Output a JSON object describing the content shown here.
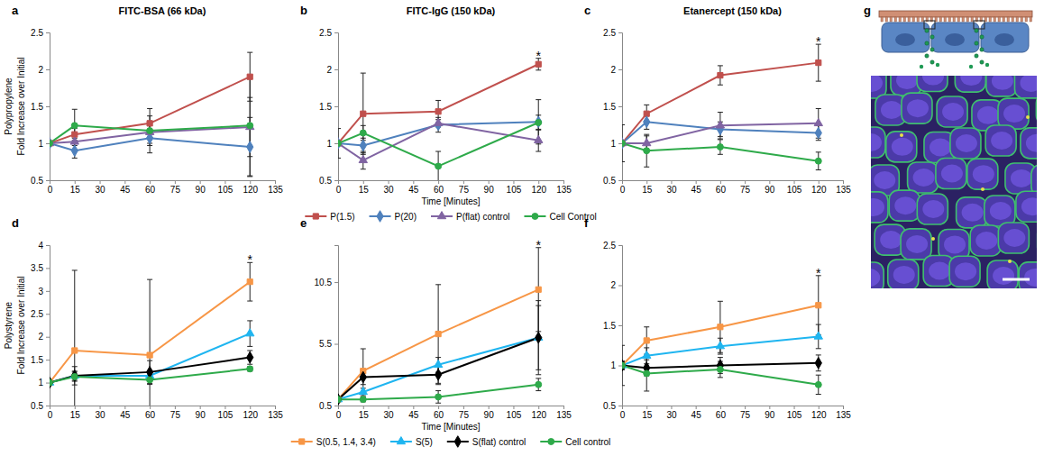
{
  "chart_data": [
    {
      "type": "line",
      "panel": "a",
      "title": "FITC-BSA (66 kDa)",
      "row_label": "Polypropylene",
      "y_label": "Fold Increase over Initial",
      "x": [
        0,
        15,
        60,
        120
      ],
      "xlim": [
        0,
        135
      ],
      "xticks": [
        0,
        15,
        30,
        45,
        60,
        75,
        90,
        105,
        120,
        135
      ],
      "ylim": [
        0.5,
        2.5
      ],
      "yticks": [
        0.5,
        1,
        1.5,
        2,
        2.5
      ],
      "series": [
        {
          "color": "#C0504D",
          "marker": "square",
          "values": [
            1,
            1.12,
            1.27,
            1.9
          ],
          "errors": [
            0.03,
            0.08,
            0.2,
            0.33
          ]
        },
        {
          "color": "#4F81BD",
          "marker": "diamond",
          "values": [
            1,
            0.9,
            1.07,
            0.95
          ],
          "errors": [
            0.03,
            0.1,
            0.2,
            0.4
          ]
        },
        {
          "color": "#8064A2",
          "marker": "triangle",
          "values": [
            1,
            1.02,
            1.15,
            1.22
          ],
          "errors": [
            0.03,
            0.05,
            0.15,
            0.4
          ]
        },
        {
          "color": "#2EAA4A",
          "marker": "circle",
          "values": [
            1,
            1.24,
            1.17,
            1.24
          ],
          "errors": [
            0.03,
            0.22,
            0.2,
            0.68
          ]
        }
      ]
    },
    {
      "type": "line",
      "panel": "b",
      "title": "FITC-IgG (150 kDa)",
      "x_label": "Time [Minutes]",
      "legend": "bottom",
      "x": [
        0,
        15,
        60,
        120
      ],
      "xlim": [
        0,
        135
      ],
      "xticks": [
        0,
        15,
        30,
        45,
        60,
        75,
        90,
        105,
        120,
        135
      ],
      "ylim": [
        0.5,
        2.5
      ],
      "yticks": [
        0.5,
        1,
        1.5,
        2,
        2.5
      ],
      "annotations": [
        {
          "text": "*",
          "x": 120
        }
      ],
      "series": [
        {
          "name": "P(1.5)",
          "color": "#C0504D",
          "marker": "square",
          "values": [
            1,
            1.4,
            1.43,
            2.07
          ],
          "errors": [
            0.03,
            0.55,
            0.15,
            0.08
          ]
        },
        {
          "name": "P(20)",
          "color": "#4F81BD",
          "marker": "diamond",
          "values": [
            1,
            0.97,
            1.25,
            1.29
          ],
          "errors": [
            0.03,
            0.1,
            0.1,
            0.3
          ]
        },
        {
          "name": "P(flat) control",
          "color": "#8064A2",
          "marker": "triangle",
          "values": [
            1,
            0.77,
            1.27,
            1.04
          ],
          "errors": [
            0.03,
            0.12,
            0.05,
            0.15
          ]
        },
        {
          "name": "Cell Control",
          "color": "#2EAA4A",
          "marker": "circle",
          "values": [
            1,
            1.14,
            0.69,
            1.28
          ],
          "errors": [
            0.2,
            0.1,
            0.2,
            0.1
          ]
        }
      ]
    },
    {
      "type": "line",
      "panel": "c",
      "title": "Etanercept (150 kDa)",
      "x": [
        0,
        15,
        60,
        120
      ],
      "xlim": [
        0,
        135
      ],
      "xticks": [
        0,
        15,
        30,
        45,
        60,
        75,
        90,
        105,
        120,
        135
      ],
      "ylim": [
        0.5,
        2.5
      ],
      "yticks": [
        0.5,
        1,
        1.5,
        2,
        2.5
      ],
      "annotations": [
        {
          "text": "*",
          "x": 120
        }
      ],
      "series": [
        {
          "color": "#C0504D",
          "marker": "square",
          "values": [
            1,
            1.4,
            1.92,
            2.09
          ],
          "errors": [
            0.03,
            0.12,
            0.13,
            0.25
          ]
        },
        {
          "color": "#4F81BD",
          "marker": "diamond",
          "values": [
            1,
            1.29,
            1.19,
            1.14
          ],
          "errors": [
            0.03,
            0.1,
            0.1,
            0.1
          ]
        },
        {
          "color": "#8064A2",
          "marker": "triangle",
          "values": [
            1,
            1.0,
            1.24,
            1.27
          ],
          "errors": [
            0.03,
            0.1,
            0.18,
            0.2
          ]
        },
        {
          "color": "#2EAA4A",
          "marker": "circle",
          "values": [
            1,
            0.9,
            0.95,
            0.76
          ],
          "errors": [
            0.25,
            0.22,
            0.1,
            0.12
          ]
        }
      ]
    },
    {
      "type": "line",
      "panel": "d",
      "row_label": "Polystyrene",
      "y_label": "Fold Increase over Initial",
      "x": [
        0,
        15,
        60,
        120
      ],
      "xlim": [
        0,
        135
      ],
      "xticks": [
        0,
        15,
        30,
        45,
        60,
        75,
        90,
        105,
        120,
        135
      ],
      "ylim": [
        0.5,
        4
      ],
      "yticks": [
        0.5,
        1,
        1.5,
        2,
        2.5,
        3,
        3.5,
        4
      ],
      "annotations": [
        {
          "text": "*",
          "x": 120
        }
      ],
      "series": [
        {
          "color": "#F79646",
          "marker": "square",
          "values": [
            1,
            1.7,
            1.6,
            3.2
          ],
          "errors": [
            0.05,
            1.75,
            1.65,
            0.42
          ]
        },
        {
          "color": "#1FB5F0",
          "marker": "triangle",
          "values": [
            1,
            1.15,
            1.15,
            2.07
          ],
          "errors": [
            0.05,
            0.1,
            0.1,
            0.28
          ]
        },
        {
          "color": "#000000",
          "marker": "diamond",
          "values": [
            1,
            1.15,
            1.23,
            1.55
          ],
          "errors": [
            0.05,
            0.2,
            0.25,
            0.15
          ]
        },
        {
          "color": "#2EAA4A",
          "marker": "circle",
          "values": [
            1,
            1.13,
            1.06,
            1.3
          ],
          "errors": [
            0.05,
            0.1,
            0.1,
            0.05
          ]
        }
      ]
    },
    {
      "type": "line",
      "panel": "e",
      "x_label": "Time [Minutes]",
      "legend": "bottom",
      "x": [
        0,
        15,
        60,
        120
      ],
      "xlim": [
        0,
        135
      ],
      "xticks": [
        0,
        15,
        30,
        45,
        60,
        75,
        90,
        105,
        120,
        135
      ],
      "ylim": [
        0.5,
        13.5
      ],
      "yticks": [
        0.5,
        5.5,
        10.5
      ],
      "annotations": [
        {
          "text": "*",
          "x": 120
        }
      ],
      "series": [
        {
          "name": "S(0.5, 1.4, 3.4)",
          "color": "#F79646",
          "marker": "square",
          "values": [
            1,
            3.3,
            6.3,
            9.9
          ],
          "errors": [
            0.1,
            1.8,
            4,
            3.4
          ]
        },
        {
          "name": "S(5)",
          "color": "#1FB5F0",
          "marker": "triangle",
          "values": [
            1,
            1.6,
            3.8,
            6
          ],
          "errors": [
            0.1,
            0.3,
            0.6,
            2.6
          ]
        },
        {
          "name": "S(flat) control",
          "color": "#000000",
          "marker": "diamond",
          "values": [
            1,
            2.8,
            3,
            6
          ],
          "errors": [
            0.1,
            0.6,
            0.8,
            3
          ]
        },
        {
          "name": "Cell control",
          "color": "#2EAA4A",
          "marker": "circle",
          "values": [
            1,
            1,
            1.2,
            2.2
          ],
          "errors": [
            0.1,
            0.2,
            0.5,
            0.5
          ]
        }
      ]
    },
    {
      "type": "line",
      "panel": "f",
      "x": [
        0,
        15,
        60,
        120
      ],
      "xlim": [
        0,
        135
      ],
      "xticks": [
        0,
        15,
        30,
        45,
        60,
        75,
        90,
        105,
        120,
        135
      ],
      "ylim": [
        0.5,
        2.5
      ],
      "yticks": [
        0.5,
        1,
        1.5,
        2,
        2.5
      ],
      "annotations": [
        {
          "text": "*",
          "x": 120
        }
      ],
      "series": [
        {
          "color": "#F79646",
          "marker": "square",
          "values": [
            1,
            1.31,
            1.48,
            1.75
          ],
          "errors": [
            0.05,
            0.17,
            0.32,
            0.37
          ]
        },
        {
          "color": "#1FB5F0",
          "marker": "triangle",
          "values": [
            1,
            1.12,
            1.24,
            1.36
          ],
          "errors": [
            0.05,
            0.1,
            0.1,
            0.15
          ]
        },
        {
          "color": "#000000",
          "marker": "diamond",
          "values": [
            1,
            0.97,
            1.0,
            1.03
          ],
          "errors": [
            0.05,
            0.1,
            0.1,
            0.1
          ]
        },
        {
          "color": "#2EAA4A",
          "marker": "circle",
          "values": [
            1,
            0.9,
            0.95,
            0.76
          ],
          "errors": [
            0.25,
            0.22,
            0.1,
            0.12
          ]
        }
      ]
    }
  ],
  "diagram": {
    "panel": "g"
  }
}
